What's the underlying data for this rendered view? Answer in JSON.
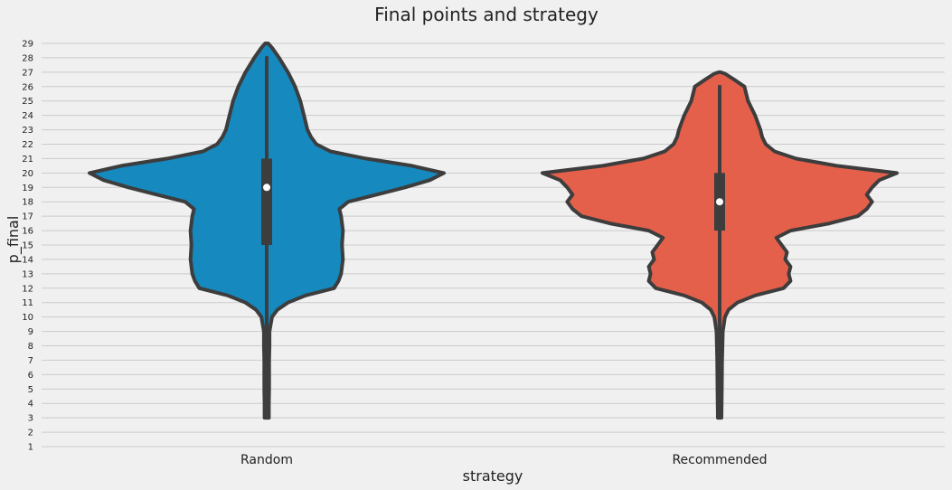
{
  "chart_data": {
    "type": "violin",
    "title": "Final points and strategy",
    "xlabel": "strategy",
    "ylabel": "p_final",
    "ylim": [
      1,
      29
    ],
    "yticks": [
      1,
      2,
      3,
      4,
      5,
      6,
      7,
      8,
      9,
      10,
      11,
      12,
      13,
      14,
      15,
      16,
      17,
      18,
      19,
      20,
      21,
      22,
      23,
      24,
      25,
      26,
      27,
      28,
      29
    ],
    "grid": "horizontal",
    "categories": [
      "Random",
      "Recommended"
    ],
    "series": [
      {
        "category": "Random",
        "color": "#1689bf",
        "min": 3,
        "q1": 15,
        "median": 19,
        "q3": 21,
        "max": 28,
        "density": [
          [
            3,
            0.012
          ],
          [
            4,
            0.012
          ],
          [
            5,
            0.014
          ],
          [
            6,
            0.014
          ],
          [
            7,
            0.014
          ],
          [
            8,
            0.016
          ],
          [
            9,
            0.016
          ],
          [
            10,
            0.03
          ],
          [
            10.5,
            0.06
          ],
          [
            11,
            0.12
          ],
          [
            11.5,
            0.22
          ],
          [
            12,
            0.38
          ],
          [
            12.5,
            0.405
          ],
          [
            13,
            0.42
          ],
          [
            14,
            0.43
          ],
          [
            15,
            0.425
          ],
          [
            16,
            0.43
          ],
          [
            17,
            0.42
          ],
          [
            17.5,
            0.41
          ],
          [
            18,
            0.46
          ],
          [
            18.5,
            0.62
          ],
          [
            19,
            0.78
          ],
          [
            19.5,
            0.92
          ],
          [
            20,
            1.0
          ],
          [
            20.5,
            0.82
          ],
          [
            21,
            0.56
          ],
          [
            21.5,
            0.36
          ],
          [
            22,
            0.28
          ],
          [
            22.5,
            0.25
          ],
          [
            23,
            0.23
          ],
          [
            24,
            0.21
          ],
          [
            25,
            0.19
          ],
          [
            26,
            0.16
          ],
          [
            27,
            0.12
          ],
          [
            28,
            0.07
          ],
          [
            28.7,
            0.03
          ],
          [
            29,
            0.008
          ]
        ]
      },
      {
        "category": "Recommended",
        "color": "#e5604a",
        "min": 3,
        "q1": 16,
        "median": 18,
        "q3": 20,
        "max": 26,
        "density": [
          [
            3,
            0.01
          ],
          [
            5,
            0.012
          ],
          [
            7,
            0.014
          ],
          [
            8,
            0.016
          ],
          [
            9,
            0.018
          ],
          [
            10,
            0.03
          ],
          [
            10.5,
            0.05
          ],
          [
            11,
            0.1
          ],
          [
            11.5,
            0.2
          ],
          [
            12,
            0.36
          ],
          [
            12.5,
            0.4
          ],
          [
            13,
            0.39
          ],
          [
            13.5,
            0.4
          ],
          [
            14,
            0.37
          ],
          [
            14.5,
            0.38
          ],
          [
            15,
            0.35
          ],
          [
            15.5,
            0.32
          ],
          [
            16,
            0.4
          ],
          [
            16.5,
            0.62
          ],
          [
            17,
            0.78
          ],
          [
            17.5,
            0.83
          ],
          [
            18,
            0.86
          ],
          [
            18.5,
            0.83
          ],
          [
            19,
            0.86
          ],
          [
            19.5,
            0.9
          ],
          [
            20,
            1.0
          ],
          [
            20.5,
            0.66
          ],
          [
            21,
            0.43
          ],
          [
            21.5,
            0.31
          ],
          [
            22,
            0.26
          ],
          [
            22.5,
            0.24
          ],
          [
            23,
            0.23
          ],
          [
            24,
            0.2
          ],
          [
            25,
            0.16
          ],
          [
            26,
            0.14
          ],
          [
            26.5,
            0.08
          ],
          [
            26.9,
            0.03
          ],
          [
            27,
            0.005
          ]
        ]
      }
    ]
  }
}
